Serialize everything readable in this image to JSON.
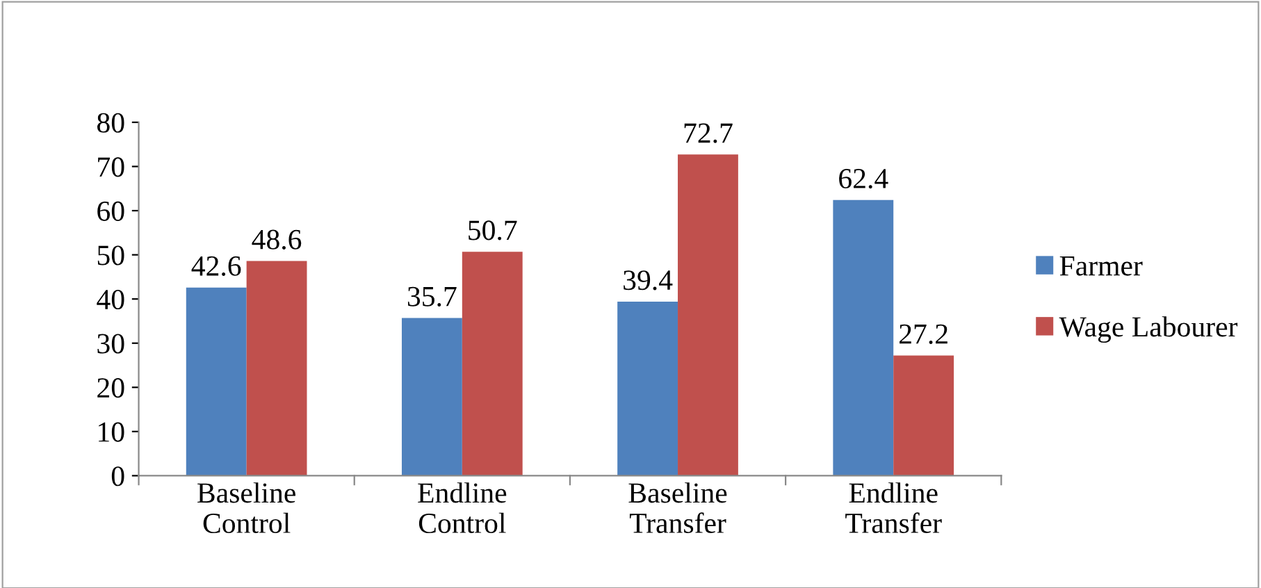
{
  "chart_data": {
    "type": "bar",
    "categories": [
      "Baseline\nControl",
      "Endline\nControl",
      "Baseline\nTransfer",
      "Endline\nTransfer"
    ],
    "series": [
      {
        "name": "Farmer",
        "color": "#4f81bd",
        "values": [
          42.6,
          35.7,
          39.4,
          62.4
        ]
      },
      {
        "name": "Wage Labourer",
        "color": "#c0504d",
        "values": [
          48.6,
          50.7,
          72.7,
          27.2
        ]
      }
    ],
    "ylim": [
      0,
      80
    ],
    "yticks": [
      0,
      10,
      20,
      30,
      40,
      50,
      60,
      70,
      80
    ],
    "data_labels": true,
    "grid": false,
    "legend": "right"
  }
}
